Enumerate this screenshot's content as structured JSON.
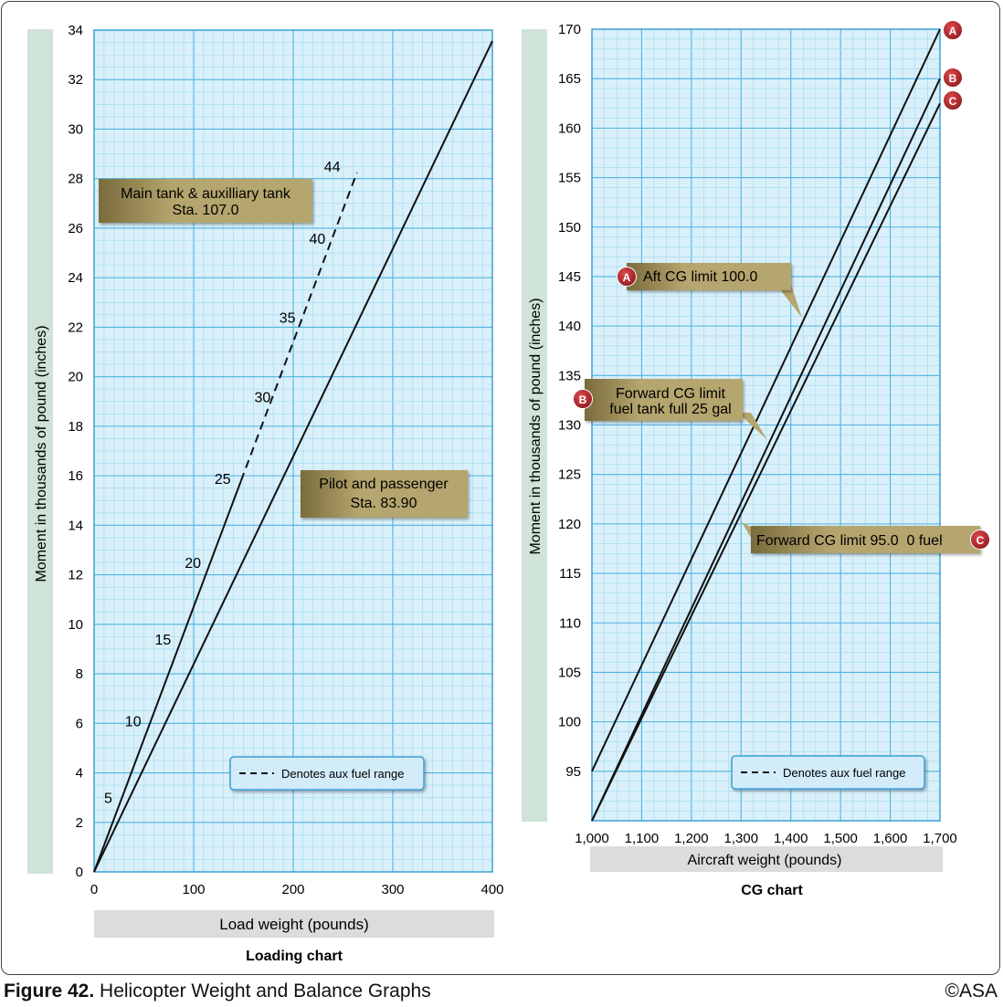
{
  "figure": {
    "caption_label": "Figure 42.",
    "caption_text": "Helicopter Weight and Balance Graphs",
    "copyright": "©ASA"
  },
  "colors": {
    "grid_bg": "#d9f0fa",
    "grid_minor": "#9fd8ef",
    "grid_major": "#4fb3e1",
    "axis_band": "#cfe3d8",
    "label_band": "#dcdcdc",
    "callout": "#b5a56e",
    "marker": "#b3262a",
    "legend_bg": "#d2ecfa",
    "legend_border": "#3b9fd8"
  },
  "chart_data": [
    {
      "type": "line",
      "title": "Loading chart",
      "xlabel": "Load weight (pounds)",
      "ylabel": "Moment in thousands of pound (inches)",
      "xlim": [
        0,
        400
      ],
      "ylim": [
        0,
        34
      ],
      "xticks": [
        0,
        100,
        200,
        300,
        400
      ],
      "xtick_labels": [
        "0",
        "100",
        "200",
        "300",
        "400"
      ],
      "yticks": [
        0,
        2,
        4,
        6,
        8,
        10,
        12,
        14,
        16,
        18,
        20,
        22,
        24,
        26,
        28,
        30,
        32,
        34
      ],
      "grid": true,
      "series": [
        {
          "name": "Pilot and passenger Sta. 83.90",
          "style": "solid",
          "x": [
            0,
            400
          ],
          "y": [
            0,
            33.56
          ]
        },
        {
          "name": "Main tank & auxilliary tank Sta. 107.0",
          "style": "solid",
          "x": [
            0,
            147.6
          ],
          "y": [
            0,
            15.8
          ]
        },
        {
          "name": "Main tank & auxilliary tank Sta. 107.0 (aux fuel)",
          "style": "dashed",
          "x": [
            147.6,
            264
          ],
          "y": [
            15.8,
            28.25
          ]
        }
      ],
      "gallon_marks": [
        {
          "label": "5",
          "x": 5,
          "y": 3
        },
        {
          "label": "10",
          "x": 30,
          "y": 6.1
        },
        {
          "label": "15",
          "x": 60,
          "y": 9.4
        },
        {
          "label": "20",
          "x": 90,
          "y": 12.5
        },
        {
          "label": "25",
          "x": 120,
          "y": 15.9
        },
        {
          "label": "30",
          "x": 160,
          "y": 19.2
        },
        {
          "label": "35",
          "x": 185,
          "y": 22.4
        },
        {
          "label": "40",
          "x": 215,
          "y": 25.6
        },
        {
          "label": "44",
          "x": 230,
          "y": 28.5
        }
      ],
      "callouts": [
        {
          "lines": [
            "Main tank & auxilliary tank",
            "Sta. 107.0"
          ]
        },
        {
          "lines": [
            "Pilot and passenger",
            "Sta. 83.90"
          ]
        }
      ],
      "legend": {
        "text": "Denotes aux fuel range",
        "placement": "bottom-right"
      }
    },
    {
      "type": "line",
      "title": "CG chart",
      "xlabel": "Aircraft weight (pounds)",
      "ylabel": "Moment in thousands of pound (inches)",
      "xlim": [
        1000,
        1700
      ],
      "ylim": [
        90,
        170
      ],
      "xticks": [
        1000,
        1100,
        1200,
        1300,
        1400,
        1500,
        1600,
        1700
      ],
      "xtick_labels": [
        "1,000",
        "1,100",
        "1,200",
        "1,300",
        "1,400",
        "1,500",
        "1,600",
        "1,700"
      ],
      "yticks": [
        95,
        100,
        105,
        110,
        115,
        120,
        125,
        130,
        135,
        140,
        145,
        150,
        155,
        160,
        165,
        170
      ],
      "grid": true,
      "series": [
        {
          "name": "A",
          "style": "solid",
          "x": [
            1000,
            1700
          ],
          "y": [
            95,
            170
          ]
        },
        {
          "name": "B",
          "style": "solid",
          "x": [
            1000,
            1700
          ],
          "y": [
            90,
            165
          ]
        },
        {
          "name": "C",
          "style": "solid",
          "x": [
            1000,
            1700
          ],
          "y": [
            90,
            162.5
          ]
        }
      ],
      "callouts": [
        {
          "marker": "A",
          "lines": [
            "Aft CG limit 100.0"
          ]
        },
        {
          "marker": "B",
          "lines": [
            "Forward CG limit",
            "fuel tank full 25 gal"
          ]
        },
        {
          "marker": "C",
          "lines": [
            "Forward CG limit 95.0  0 fuel"
          ]
        }
      ],
      "legend": {
        "text": "Denotes aux fuel range",
        "placement": "bottom-right"
      }
    }
  ]
}
